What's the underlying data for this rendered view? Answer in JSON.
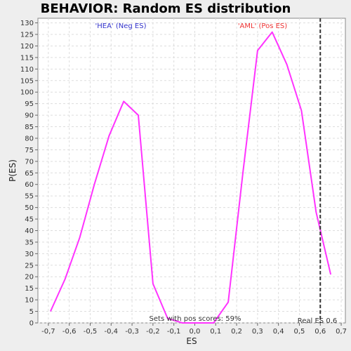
{
  "chart_data": {
    "type": "line",
    "title": "BEHAVIOR: Random ES distribution",
    "xlabel": "ES",
    "ylabel": "P(ES)",
    "xlim": [
      -0.75,
      0.72
    ],
    "ylim": [
      0,
      132
    ],
    "x_ticks": [
      -0.7,
      -0.6,
      -0.5,
      -0.4,
      -0.3,
      -0.2,
      -0.1,
      0.0,
      0.1,
      0.2,
      0.3,
      0.4,
      0.5,
      0.6,
      0.7
    ],
    "x_tick_labels": [
      "-0,7",
      "-0,6",
      "-0,5",
      "-0,4",
      "-0,3",
      "-0,2",
      "-0,1",
      "0,0",
      "0,1",
      "0,2",
      "0,3",
      "0,4",
      "0,5",
      "0,6",
      "0,7"
    ],
    "y_ticks": [
      0,
      5,
      10,
      15,
      20,
      25,
      30,
      35,
      40,
      45,
      50,
      55,
      60,
      65,
      70,
      75,
      80,
      85,
      90,
      95,
      100,
      105,
      110,
      115,
      120,
      125,
      130
    ],
    "grid": true,
    "series": [
      {
        "color": "#ff33ff",
        "x": [
          -0.69,
          -0.62,
          -0.55,
          -0.48,
          -0.41,
          -0.34,
          -0.27,
          -0.2,
          -0.13,
          -0.06,
          0.02,
          0.09,
          0.16,
          0.23,
          0.3,
          0.37,
          0.44,
          0.51,
          0.58,
          0.65
        ],
        "y": [
          5,
          19,
          37,
          60,
          81,
          96,
          90,
          17,
          2,
          0,
          0,
          0,
          9,
          65,
          118,
          126,
          112,
          92,
          48,
          21
        ]
      }
    ],
    "vline": {
      "x": 0.6,
      "color": "#333333",
      "style": "dashed"
    },
    "annotations": {
      "neg_label": "'HEA' (Neg ES)",
      "neg_color": "#3333cc",
      "pos_label": "'AML' (Pos ES)",
      "pos_color": "#ee3333",
      "pos_scores": "Sets with pos scores: 59%",
      "real_es": "Real ES 0.6"
    }
  }
}
